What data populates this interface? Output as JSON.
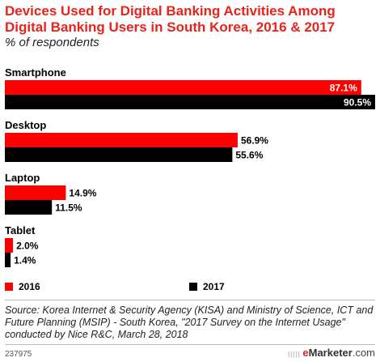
{
  "chart_data": {
    "type": "bar",
    "orientation": "horizontal",
    "title": "Devices Used for Digital Banking Activities Among Digital Banking Users in South Korea, 2016 & 2017",
    "subtitle": "% of respondents",
    "categories": [
      "Smartphone",
      "Desktop",
      "Laptop",
      "Tablet"
    ],
    "series": [
      {
        "name": "2016",
        "color": "#ff0000",
        "values": [
          87.1,
          56.9,
          14.9,
          2.0
        ],
        "labels": [
          "87.1%",
          "56.9%",
          "14.9%",
          "2.0%"
        ]
      },
      {
        "name": "2017",
        "color": "#000000",
        "values": [
          90.5,
          55.6,
          11.5,
          1.4
        ],
        "labels": [
          "90.5%",
          "55.6%",
          "11.5%",
          "1.4%"
        ]
      }
    ],
    "xlim": [
      0,
      90.5
    ],
    "grid": false,
    "legend_position": "bottom",
    "source": "Source: Korea Internet & Security Agency (KISA) and Ministry of Science, ICT and Future Planning (MSIP) - South Korea, \"2017 Survey on the Internet Usage\" conducted by Nice R&C, March 28, 2018"
  },
  "footer": {
    "chart_id": "237975",
    "brand_mark": "|||||",
    "brand_e": "e",
    "brand_rest": "Marketer",
    "brand_domain": ".com"
  }
}
